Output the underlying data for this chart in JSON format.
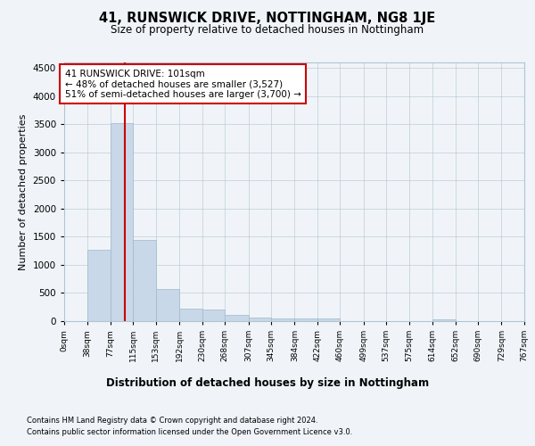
{
  "title": "41, RUNSWICK DRIVE, NOTTINGHAM, NG8 1JE",
  "subtitle": "Size of property relative to detached houses in Nottingham",
  "xlabel": "Distribution of detached houses by size in Nottingham",
  "ylabel": "Number of detached properties",
  "footnote1": "Contains HM Land Registry data © Crown copyright and database right 2024.",
  "footnote2": "Contains public sector information licensed under the Open Government Licence v3.0.",
  "bar_edges": [
    0,
    38,
    77,
    115,
    153,
    192,
    230,
    268,
    307,
    345,
    384,
    422,
    460,
    499,
    537,
    575,
    614,
    652,
    690,
    729,
    767
  ],
  "bar_heights": [
    5,
    1270,
    3527,
    1450,
    575,
    220,
    210,
    105,
    70,
    55,
    45,
    40,
    5,
    0,
    0,
    0,
    35,
    0,
    0,
    0,
    0
  ],
  "bar_color": "#c8d8e8",
  "bar_edge_color": "#a0b8cc",
  "vline_x": 101,
  "vline_color": "#cc0000",
  "ylim": [
    0,
    4600
  ],
  "yticks": [
    0,
    500,
    1000,
    1500,
    2000,
    2500,
    3000,
    3500,
    4000,
    4500
  ],
  "annotation_box_text": "41 RUNSWICK DRIVE: 101sqm\n← 48% of detached houses are smaller (3,527)\n51% of semi-detached houses are larger (3,700) →",
  "bg_color": "#f0f4f8",
  "plot_bg_color": "#f0f4f8",
  "grid_color": "#b0c4d4"
}
